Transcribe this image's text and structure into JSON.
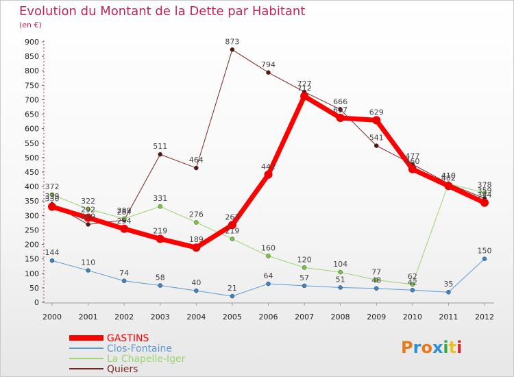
{
  "header": {
    "title": "Evolution du Montant de la Dette par Habitant",
    "subtitle": "(en €)"
  },
  "logo": {
    "text": "Proxiti",
    "colors": [
      "#e87a1e",
      "#2d8fd5",
      "#e87a1e",
      "#2d8fd5",
      "#3aa64a",
      "#e8c21e",
      "#d32b2b"
    ]
  },
  "chart_data": {
    "type": "line",
    "x": [
      "2000",
      "2001",
      "2002",
      "2003",
      "2004",
      "2005",
      "2006",
      "2007",
      "2008",
      "2009",
      "2010",
      "2011",
      "2012"
    ],
    "ylim": [
      0,
      900
    ],
    "yticks": [
      0,
      50,
      100,
      150,
      200,
      250,
      300,
      350,
      400,
      450,
      500,
      550,
      600,
      650,
      700,
      750,
      800,
      850,
      900
    ],
    "grid": false,
    "legend_position": "bottom-left",
    "series": [
      {
        "name": "Quiers",
        "color": "#7a2323",
        "pointColor": "#5a1212",
        "width": 1,
        "values": [
          339,
          269,
          284,
          511,
          464,
          873,
          794,
          727,
          666,
          541,
          477,
          410,
          359
        ]
      },
      {
        "name": "La Chapelle-Iger",
        "color": "#9ad46e",
        "pointColor": "#7cc740",
        "width": 1,
        "values": [
          372,
          322,
          289,
          331,
          276,
          219,
          160,
          120,
          104,
          77,
          62,
          410,
          378
        ]
      },
      {
        "name": "Clos-Fontaine",
        "color": "#5a9ad2",
        "pointColor": "#3d84c6",
        "width": 1,
        "values": [
          144,
          110,
          74,
          58,
          40,
          21,
          64,
          57,
          51,
          48,
          42,
          35,
          150
        ]
      },
      {
        "name": "GASTINS",
        "color": "#ff0000",
        "pointColor": "#ee0000",
        "width": 7,
        "values": [
          330,
          292,
          254,
          219,
          189,
          267,
          441,
          712,
          637,
          629,
          460,
          402,
          344
        ]
      }
    ],
    "labels": [
      {
        "x": 0,
        "y": 372,
        "text": "372"
      },
      {
        "x": 0,
        "y": 339,
        "text": "339"
      },
      {
        "x": 0,
        "y": 330,
        "text": "330"
      },
      {
        "x": 0,
        "y": 144,
        "text": "144"
      },
      {
        "x": 1,
        "y": 322,
        "text": "322"
      },
      {
        "x": 1,
        "y": 292,
        "text": "292"
      },
      {
        "x": 1,
        "y": 269,
        "text": "269"
      },
      {
        "x": 1,
        "y": 110,
        "text": "110"
      },
      {
        "x": 2,
        "y": 289,
        "text": "289"
      },
      {
        "x": 2,
        "y": 284,
        "text": "284"
      },
      {
        "x": 2,
        "y": 254,
        "text": "254"
      },
      {
        "x": 2,
        "y": 74,
        "text": "74"
      },
      {
        "x": 3,
        "y": 511,
        "text": "511"
      },
      {
        "x": 3,
        "y": 331,
        "text": "331"
      },
      {
        "x": 3,
        "y": 219,
        "text": "219"
      },
      {
        "x": 3,
        "y": 58,
        "text": "58"
      },
      {
        "x": 4,
        "y": 464,
        "text": "464"
      },
      {
        "x": 4,
        "y": 276,
        "text": "276"
      },
      {
        "x": 4,
        "y": 189,
        "text": "189"
      },
      {
        "x": 4,
        "y": 40,
        "text": "40"
      },
      {
        "x": 5,
        "y": 873,
        "text": "873"
      },
      {
        "x": 5,
        "y": 267,
        "text": "267"
      },
      {
        "x": 5,
        "y": 219,
        "text": "219"
      },
      {
        "x": 5,
        "y": 21,
        "text": "21"
      },
      {
        "x": 6,
        "y": 794,
        "text": "794"
      },
      {
        "x": 6,
        "y": 441,
        "text": "441"
      },
      {
        "x": 6,
        "y": 160,
        "text": "160"
      },
      {
        "x": 6,
        "y": 64,
        "text": "64"
      },
      {
        "x": 7,
        "y": 727,
        "text": "727"
      },
      {
        "x": 7,
        "y": 712,
        "text": "712"
      },
      {
        "x": 7,
        "y": 120,
        "text": "120"
      },
      {
        "x": 7,
        "y": 57,
        "text": "57"
      },
      {
        "x": 8,
        "y": 666,
        "text": "666"
      },
      {
        "x": 8,
        "y": 637,
        "text": "637"
      },
      {
        "x": 8,
        "y": 104,
        "text": "104"
      },
      {
        "x": 8,
        "y": 51,
        "text": "51"
      },
      {
        "x": 9,
        "y": 629,
        "text": "629"
      },
      {
        "x": 9,
        "y": 541,
        "text": "541"
      },
      {
        "x": 9,
        "y": 77,
        "text": "77"
      },
      {
        "x": 9,
        "y": 48,
        "text": "48"
      },
      {
        "x": 10,
        "y": 477,
        "text": "477"
      },
      {
        "x": 10,
        "y": 460,
        "text": "460"
      },
      {
        "x": 10,
        "y": 62,
        "text": "62"
      },
      {
        "x": 10,
        "y": 42,
        "text": "42"
      },
      {
        "x": 11,
        "y": 410,
        "text": "410"
      },
      {
        "x": 11,
        "y": 410,
        "text": "410"
      },
      {
        "x": 11,
        "y": 402,
        "text": "402"
      },
      {
        "x": 11,
        "y": 35,
        "text": "35"
      },
      {
        "x": 12,
        "y": 378,
        "text": "378"
      },
      {
        "x": 12,
        "y": 359,
        "text": "359"
      },
      {
        "x": 12,
        "y": 344,
        "text": "344"
      },
      {
        "x": 12,
        "y": 150,
        "text": "150"
      }
    ],
    "legend": [
      {
        "name": "GASTINS",
        "color": "#ff0000",
        "width": 8
      },
      {
        "name": "Clos-Fontaine",
        "color": "#5a9ad2",
        "width": 2
      },
      {
        "name": "La Chapelle-Iger",
        "color": "#9ad46e",
        "width": 2
      },
      {
        "name": "Quiers",
        "color": "#7a2323",
        "width": 2
      }
    ]
  }
}
